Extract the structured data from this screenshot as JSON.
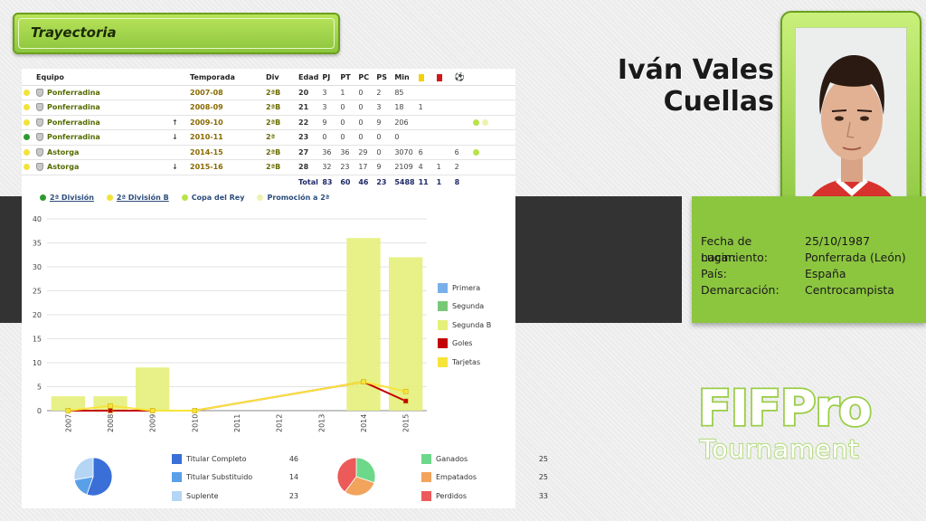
{
  "header": {
    "title": "Trayectoria"
  },
  "player": {
    "name_line1": "Iván Vales",
    "name_line2": "Cuellas"
  },
  "info": {
    "rows": [
      {
        "label": "Fecha de nacimiento:",
        "value": "25/10/1987"
      },
      {
        "label": "Lugar:",
        "value": "Ponferrada (León)"
      },
      {
        "label": "País:",
        "value": "España"
      },
      {
        "label": "Demarcación:",
        "value": "Centrocampista"
      }
    ]
  },
  "career_table": {
    "columns": [
      "Equipo",
      "Temporada",
      "Div",
      "Edad",
      "PJ",
      "PT",
      "PC",
      "PS",
      "Min"
    ],
    "rows": [
      {
        "dot_color": "#f2e33a",
        "team": "Ponferradina",
        "move": "",
        "season": "2007-08",
        "div": "2ªB",
        "age": "20",
        "pj": "3",
        "pt": "1",
        "pc": "0",
        "ps": "2",
        "min": "85",
        "yellow": "",
        "red": "",
        "goals": "",
        "extra": []
      },
      {
        "dot_color": "#f2e33a",
        "team": "Ponferradina",
        "move": "",
        "season": "2008-09",
        "div": "2ªB",
        "age": "21",
        "pj": "3",
        "pt": "0",
        "pc": "0",
        "ps": "3",
        "min": "18",
        "yellow": "1",
        "red": "",
        "goals": "",
        "extra": []
      },
      {
        "dot_color": "#f2e33a",
        "team": "Ponferradina",
        "move": "↑",
        "season": "2009-10",
        "div": "2ªB",
        "age": "22",
        "pj": "9",
        "pt": "0",
        "pc": "0",
        "ps": "9",
        "min": "206",
        "yellow": "",
        "red": "",
        "goals": "",
        "extra": [
          "#b8e34a",
          "#eef2b0"
        ]
      },
      {
        "dot_color": "#2e9a2e",
        "team": "Ponferradina",
        "move": "↓",
        "season": "2010-11",
        "div": "2ª",
        "age": "23",
        "pj": "0",
        "pt": "0",
        "pc": "0",
        "ps": "0",
        "min": "0",
        "yellow": "",
        "red": "",
        "goals": "",
        "extra": []
      },
      {
        "dot_color": "#f2e33a",
        "team": "Astorga",
        "move": "",
        "season": "2014-15",
        "div": "2ªB",
        "age": "27",
        "pj": "36",
        "pt": "36",
        "pc": "29",
        "ps": "0",
        "min": "3070",
        "yellow": "6",
        "red": "",
        "goals": "6",
        "extra": [
          "#b8e34a"
        ]
      },
      {
        "dot_color": "#f2e33a",
        "team": "Astorga",
        "move": "↓",
        "season": "2015-16",
        "div": "2ªB",
        "age": "28",
        "pj": "32",
        "pt": "23",
        "pc": "17",
        "ps": "9",
        "min": "2109",
        "yellow": "4",
        "red": "1",
        "goals": "2",
        "extra": []
      }
    ],
    "total": {
      "label": "Total",
      "pj": "83",
      "pt": "60",
      "pc": "46",
      "ps": "23",
      "min": "5488",
      "yellow": "11",
      "red": "1",
      "goals": "8"
    }
  },
  "division_legend": [
    {
      "label": "2ª División",
      "color": "#2e9a2e",
      "link": true
    },
    {
      "label": "2ª División B",
      "color": "#f2e33a",
      "link": true
    },
    {
      "label": "Copa del Rey",
      "color": "#b8e34a",
      "link": false
    },
    {
      "label": "Promoción a 2ª",
      "color": "#eef2b0",
      "link": false
    }
  ],
  "chart_data": {
    "type": "bar",
    "categories": [
      "2007",
      "2008",
      "2009",
      "2010",
      "2011",
      "2012",
      "2013",
      "2014",
      "2015"
    ],
    "ylim": [
      0,
      40
    ],
    "yticks": [
      0,
      5,
      10,
      15,
      20,
      25,
      30,
      35,
      40
    ],
    "series": [
      {
        "name": "Primera",
        "kind": "bar",
        "color": "#7ab0ea",
        "values": [
          0,
          0,
          0,
          0,
          0,
          0,
          0,
          0,
          0
        ]
      },
      {
        "name": "Segunda",
        "kind": "bar",
        "color": "#78c878",
        "values": [
          0,
          0,
          0,
          0,
          0,
          0,
          0,
          0,
          0
        ]
      },
      {
        "name": "Segunda B",
        "kind": "bar",
        "color": "#e4f07a",
        "values": [
          3,
          3,
          9,
          0,
          0,
          0,
          0,
          36,
          32
        ]
      },
      {
        "name": "Goles",
        "kind": "line",
        "color": "#c40000",
        "values": [
          0,
          0,
          0,
          0,
          null,
          null,
          null,
          6,
          2
        ]
      },
      {
        "name": "Tarjetas",
        "kind": "line",
        "color": "#f7e43a",
        "values": [
          0,
          1,
          0,
          0,
          null,
          null,
          null,
          6,
          4
        ]
      }
    ]
  },
  "stats_starts": {
    "items": [
      {
        "label": "Titular Completo",
        "value": 46,
        "color": "#3a6fd8"
      },
      {
        "label": "Titular Substituido",
        "value": 14,
        "color": "#5aa0e8"
      },
      {
        "label": "Suplente",
        "value": 23,
        "color": "#b4d6f4"
      }
    ]
  },
  "stats_results": {
    "items": [
      {
        "label": "Ganados",
        "value": 25,
        "color": "#6dd88a"
      },
      {
        "label": "Empatados",
        "value": 25,
        "color": "#f2a35c"
      },
      {
        "label": "Perdidos",
        "value": 33,
        "color": "#ec5a5a"
      }
    ]
  },
  "logo": {
    "line1": "FIFPro",
    "line2": "Tournament"
  }
}
